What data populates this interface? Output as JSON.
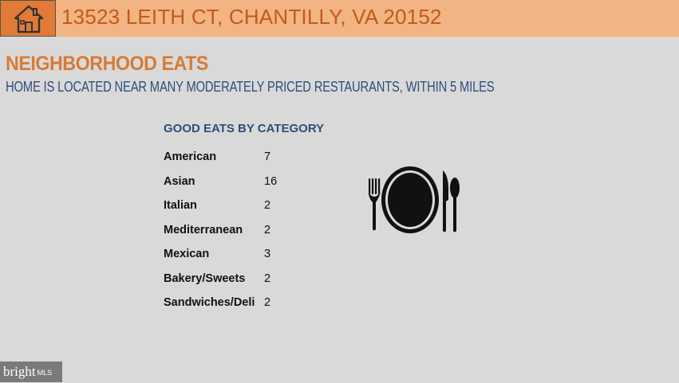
{
  "header": {
    "address": "13523 LEITH CT, CHANTILLY, VA 20152",
    "home_icon": "home-icon"
  },
  "section": {
    "title": "NEIGHBORHOOD EATS",
    "subtitle": "HOME IS LOCATED NEAR MANY MODERATELY PRICED RESTAURANTS, WITHIN 5 MILES"
  },
  "eats": {
    "header": "GOOD EATS BY CATEGORY",
    "categories": [
      {
        "name": "American",
        "count": "7"
      },
      {
        "name": "Asian",
        "count": "16"
      },
      {
        "name": "Italian",
        "count": "2"
      },
      {
        "name": "Mediterranean",
        "count": "2"
      },
      {
        "name": "Mexican",
        "count": "3"
      },
      {
        "name": "Bakery/Sweets",
        "count": "2"
      },
      {
        "name": "Sandwiches/Deli",
        "count": "2"
      }
    ],
    "icon": "dining-plate-icon"
  },
  "branding": {
    "name": "bright",
    "suffix": "MLS"
  },
  "colors": {
    "header_bg": "#f2b482",
    "home_box": "#e07a36",
    "address_text": "#c35a1c",
    "title_text": "#d97a35",
    "subtitle_text": "#2f4e7a",
    "background": "#d9d9d9"
  }
}
